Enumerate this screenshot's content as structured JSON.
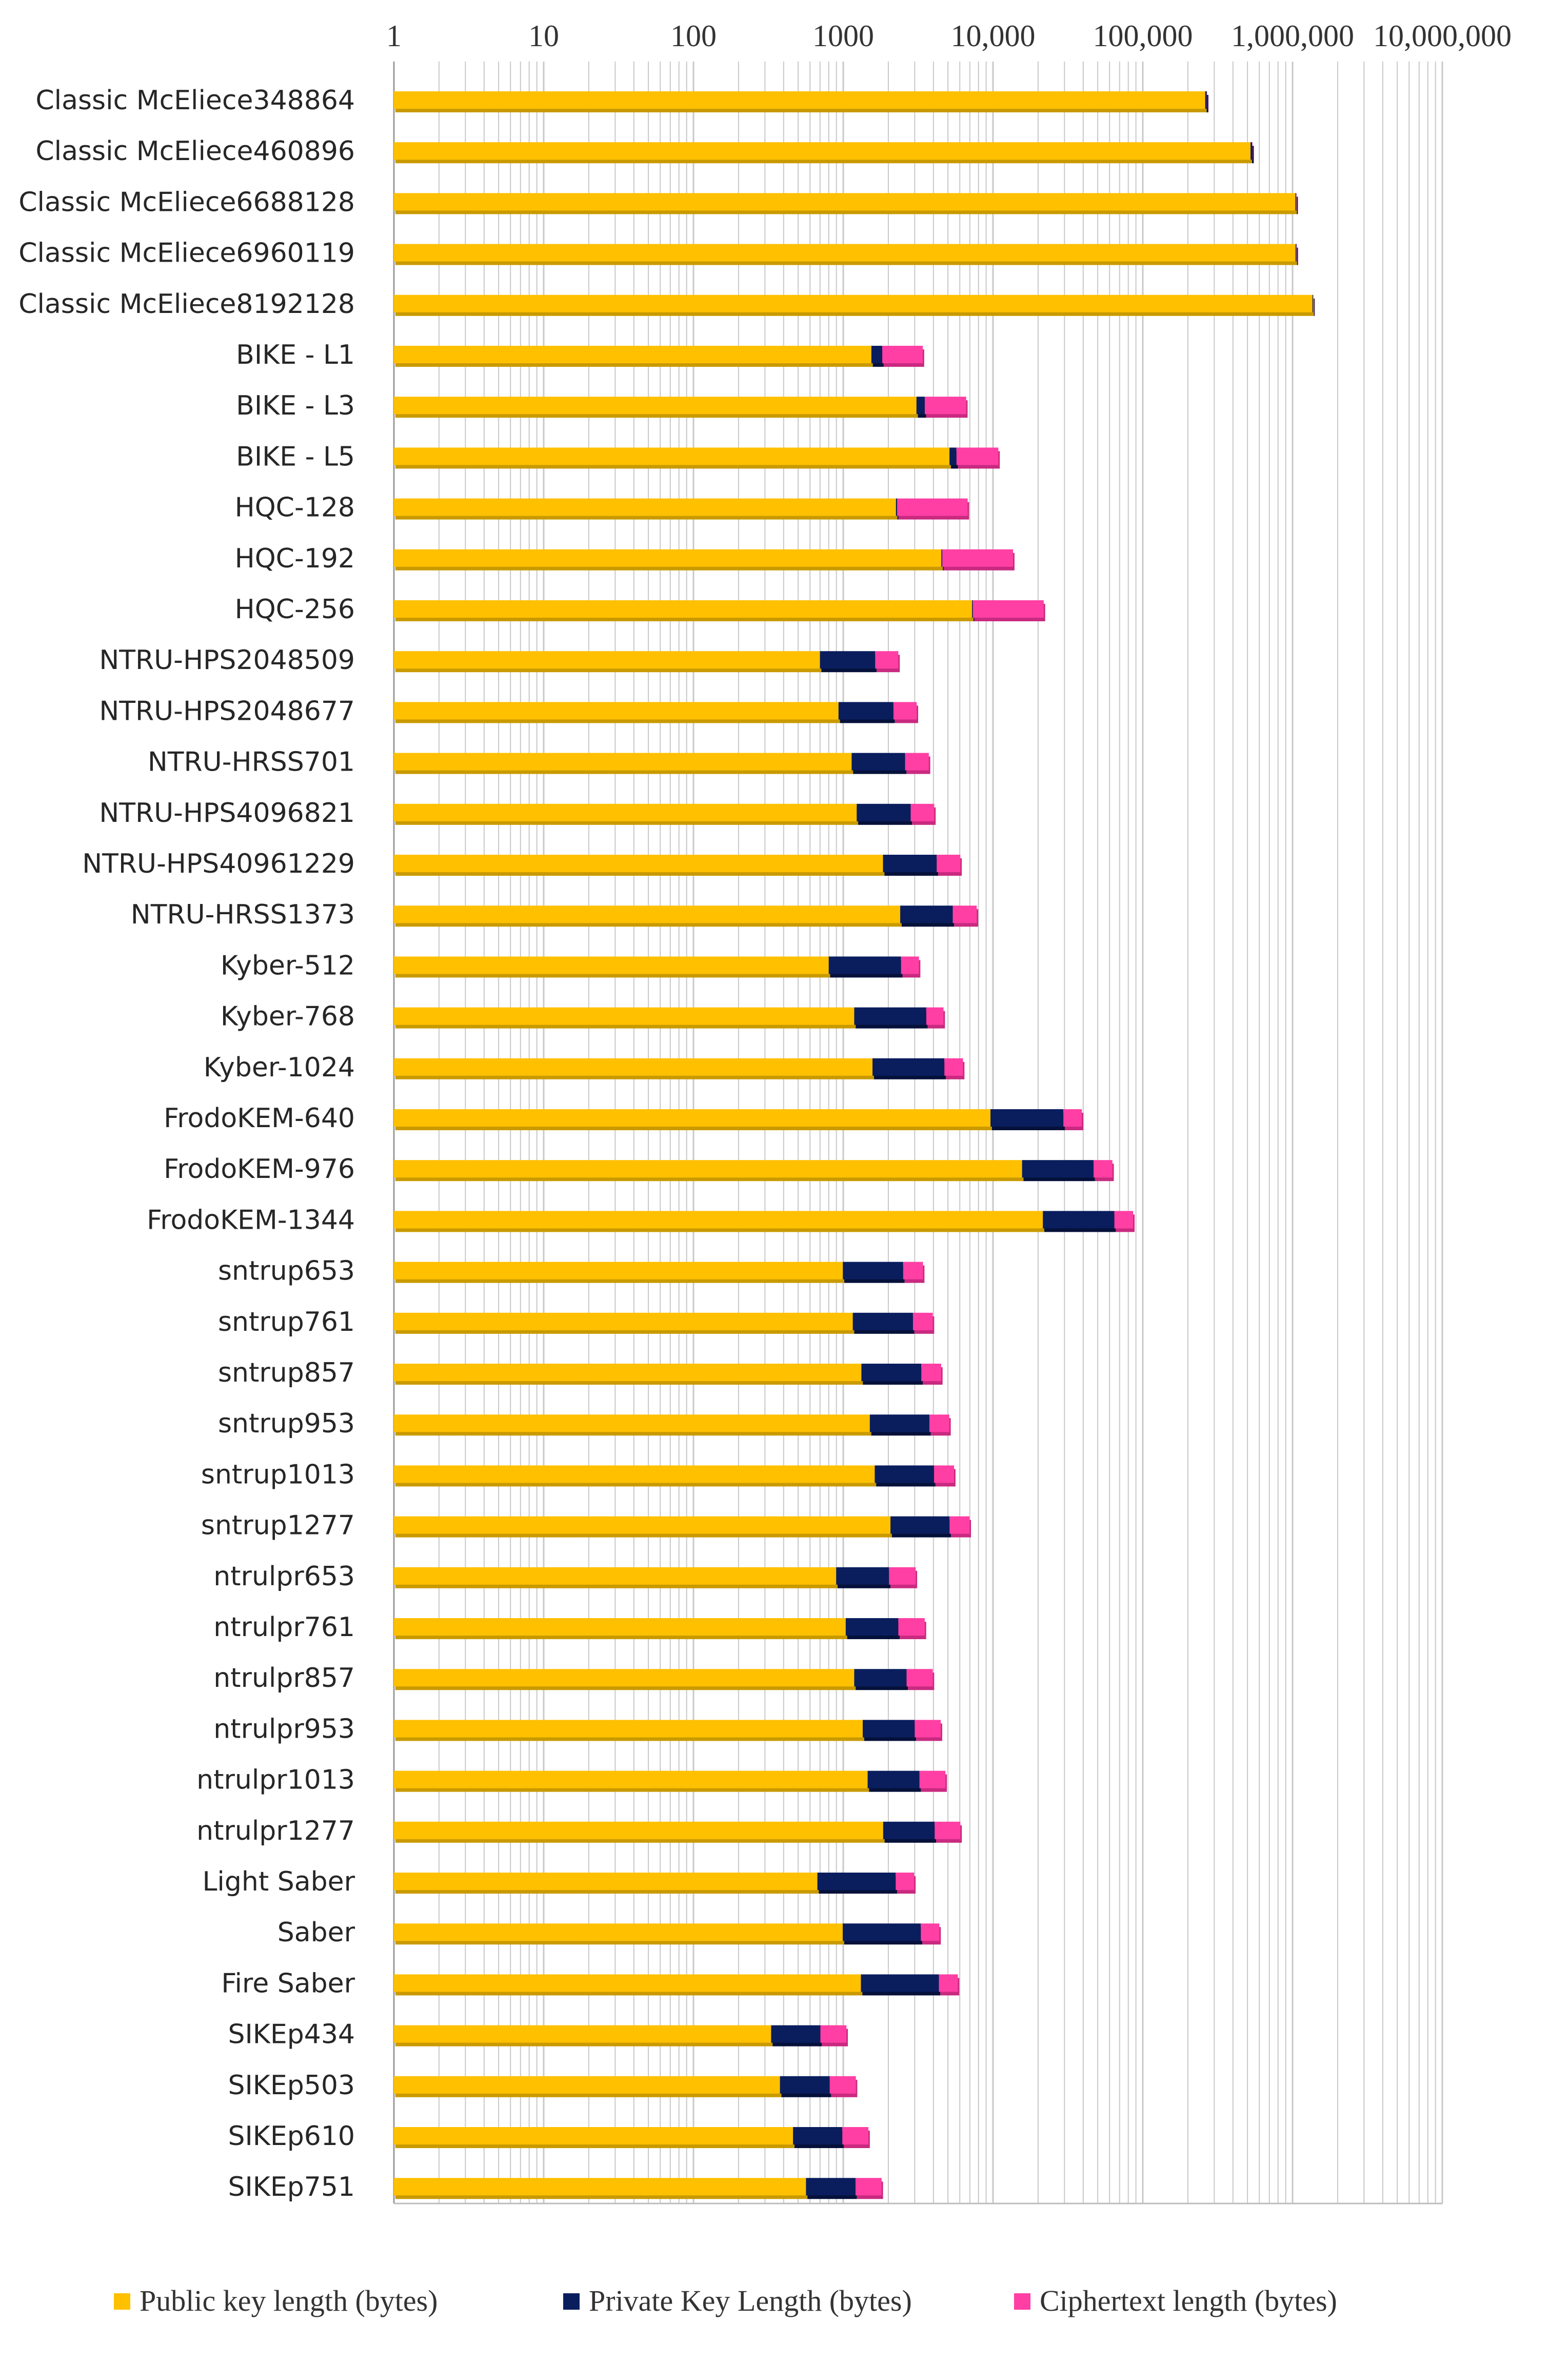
{
  "colors": {
    "public": "#FFC000",
    "public_shadow": "#C99A00",
    "private": "#0A1E5E",
    "private_shadow": "#05113A",
    "ciphertext": "#FF3FA4",
    "ciphertext_shadow": "#C92A80",
    "grid": "#C8C8C8"
  },
  "chart_data": {
    "type": "bar",
    "orientation": "horizontal",
    "stacked": true,
    "x_scale": "log",
    "xlim": [
      1,
      10000000
    ],
    "x_tick_labels": [
      "1",
      "10",
      "100",
      "1000",
      "10,000",
      "100,000",
      "1,000,000",
      "10,000,000"
    ],
    "grid": true,
    "legend_position": "bottom",
    "categories": [
      "Classic McEliece348864",
      "Classic McEliece460896",
      "Classic McEliece6688128",
      "Classic McEliece6960119",
      "Classic McEliece8192128",
      "BIKE - L1",
      "BIKE - L3",
      "BIKE - L5",
      "HQC-128",
      "HQC-192",
      "HQC-256",
      "NTRU-HPS2048509",
      "NTRU-HPS2048677",
      "NTRU-HRSS701",
      "NTRU-HPS4096821",
      "NTRU-HPS40961229",
      "NTRU-HRSS1373",
      "Kyber-512",
      "Kyber-768",
      "Kyber-1024",
      "FrodoKEM-640",
      "FrodoKEM-976",
      "FrodoKEM-1344",
      "sntrup653",
      "sntrup761",
      "sntrup857",
      "sntrup953",
      "sntrup1013",
      "sntrup1277",
      "ntrulpr653",
      "ntrulpr761",
      "ntrulpr857",
      "ntrulpr953",
      "ntrulpr1013",
      "ntrulpr1277",
      "Light Saber",
      "Saber",
      "Fire Saber",
      "SIKEp434",
      "SIKEp503",
      "SIKEp610",
      "SIKEp751"
    ],
    "series": [
      {
        "name": "Public key length (bytes)",
        "values": [
          261120,
          524160,
          1044992,
          1047319,
          1357824,
          1541,
          3083,
          5122,
          2249,
          4522,
          7245,
          699,
          930,
          1138,
          1230,
          1842,
          2401,
          800,
          1184,
          1568,
          9616,
          15632,
          21520,
          994,
          1158,
          1322,
          1505,
          1623,
          2067,
          897,
          1039,
          1184,
          1349,
          1455,
          1847,
          672,
          992,
          1312,
          330,
          378,
          462,
          564
        ]
      },
      {
        "name": "Private Key Length (bytes)",
        "values": [
          6452,
          13568,
          13892,
          13908,
          14080,
          281,
          419,
          580,
          40,
          64,
          96,
          935,
          1234,
          1450,
          1590,
          2366,
          2983,
          1632,
          2400,
          3168,
          19888,
          31296,
          43088,
          1518,
          1763,
          1999,
          2254,
          2417,
          3059,
          1125,
          1294,
          1463,
          1652,
          1773,
          2231,
          1568,
          2304,
          3040,
          374,
          434,
          524,
          644
        ]
      },
      {
        "name": "Ciphertext length (bytes)",
        "values": [
          128,
          188,
          240,
          226,
          240,
          1573,
          3115,
          5154,
          4481,
          9026,
          14469,
          699,
          930,
          1138,
          1230,
          1842,
          2401,
          768,
          1088,
          1568,
          9720,
          15744,
          21632,
          897,
          1039,
          1184,
          1349,
          1455,
          1847,
          1025,
          1167,
          1312,
          1477,
          1583,
          1975,
          736,
          1088,
          1472,
          346,
          402,
          486,
          596
        ]
      }
    ],
    "title": "",
    "xlabel": "",
    "ylabel": ""
  }
}
